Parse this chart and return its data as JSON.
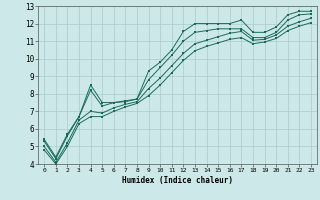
{
  "xlabel": "Humidex (Indice chaleur)",
  "bg_color": "#cce8e8",
  "grid_color": "#aacccc",
  "line_color": "#1a6b5a",
  "xlim": [
    -0.5,
    23.5
  ],
  "ylim": [
    4,
    13
  ],
  "xticks": [
    0,
    1,
    2,
    3,
    4,
    5,
    6,
    7,
    8,
    9,
    10,
    11,
    12,
    13,
    14,
    15,
    16,
    17,
    18,
    19,
    20,
    21,
    22,
    23
  ],
  "yticks": [
    4,
    5,
    6,
    7,
    8,
    9,
    10,
    11,
    12,
    13
  ],
  "lines": [
    [
      0,
      5.4,
      1,
      4.4,
      2,
      5.7,
      3,
      6.7,
      4,
      8.5,
      5,
      7.5,
      6,
      7.5,
      7,
      7.6,
      8,
      7.7,
      9,
      9.3,
      10,
      9.8,
      11,
      10.5,
      12,
      11.55,
      13,
      12.0,
      14,
      12.0,
      15,
      12.0,
      16,
      12.0,
      17,
      12.2,
      18,
      11.5,
      19,
      11.5,
      20,
      11.8,
      21,
      12.5,
      22,
      12.7,
      23,
      12.7
    ],
    [
      0,
      5.3,
      1,
      4.3,
      2,
      5.6,
      3,
      6.7,
      4,
      8.2,
      5,
      7.3,
      6,
      7.5,
      7,
      7.55,
      8,
      7.7,
      9,
      8.8,
      10,
      9.5,
      11,
      10.2,
      12,
      11.0,
      13,
      11.5,
      14,
      11.6,
      15,
      11.7,
      16,
      11.7,
      17,
      11.7,
      18,
      11.2,
      19,
      11.2,
      20,
      11.5,
      21,
      12.2,
      22,
      12.5,
      23,
      12.55
    ],
    [
      0,
      5.0,
      1,
      4.1,
      2,
      5.2,
      3,
      6.5,
      4,
      7.0,
      5,
      6.9,
      6,
      7.2,
      7,
      7.4,
      8,
      7.55,
      9,
      8.3,
      10,
      8.9,
      11,
      9.6,
      12,
      10.3,
      13,
      10.85,
      14,
      11.05,
      15,
      11.25,
      16,
      11.45,
      17,
      11.55,
      18,
      11.05,
      19,
      11.1,
      20,
      11.35,
      21,
      11.85,
      22,
      12.1,
      23,
      12.3
    ],
    [
      0,
      4.8,
      1,
      4.0,
      2,
      5.0,
      3,
      6.3,
      4,
      6.7,
      5,
      6.7,
      6,
      7.0,
      7,
      7.25,
      8,
      7.45,
      9,
      7.9,
      10,
      8.5,
      11,
      9.2,
      12,
      9.9,
      13,
      10.45,
      14,
      10.7,
      15,
      10.9,
      16,
      11.1,
      17,
      11.2,
      18,
      10.85,
      19,
      10.95,
      20,
      11.15,
      21,
      11.6,
      22,
      11.85,
      23,
      12.05
    ]
  ]
}
